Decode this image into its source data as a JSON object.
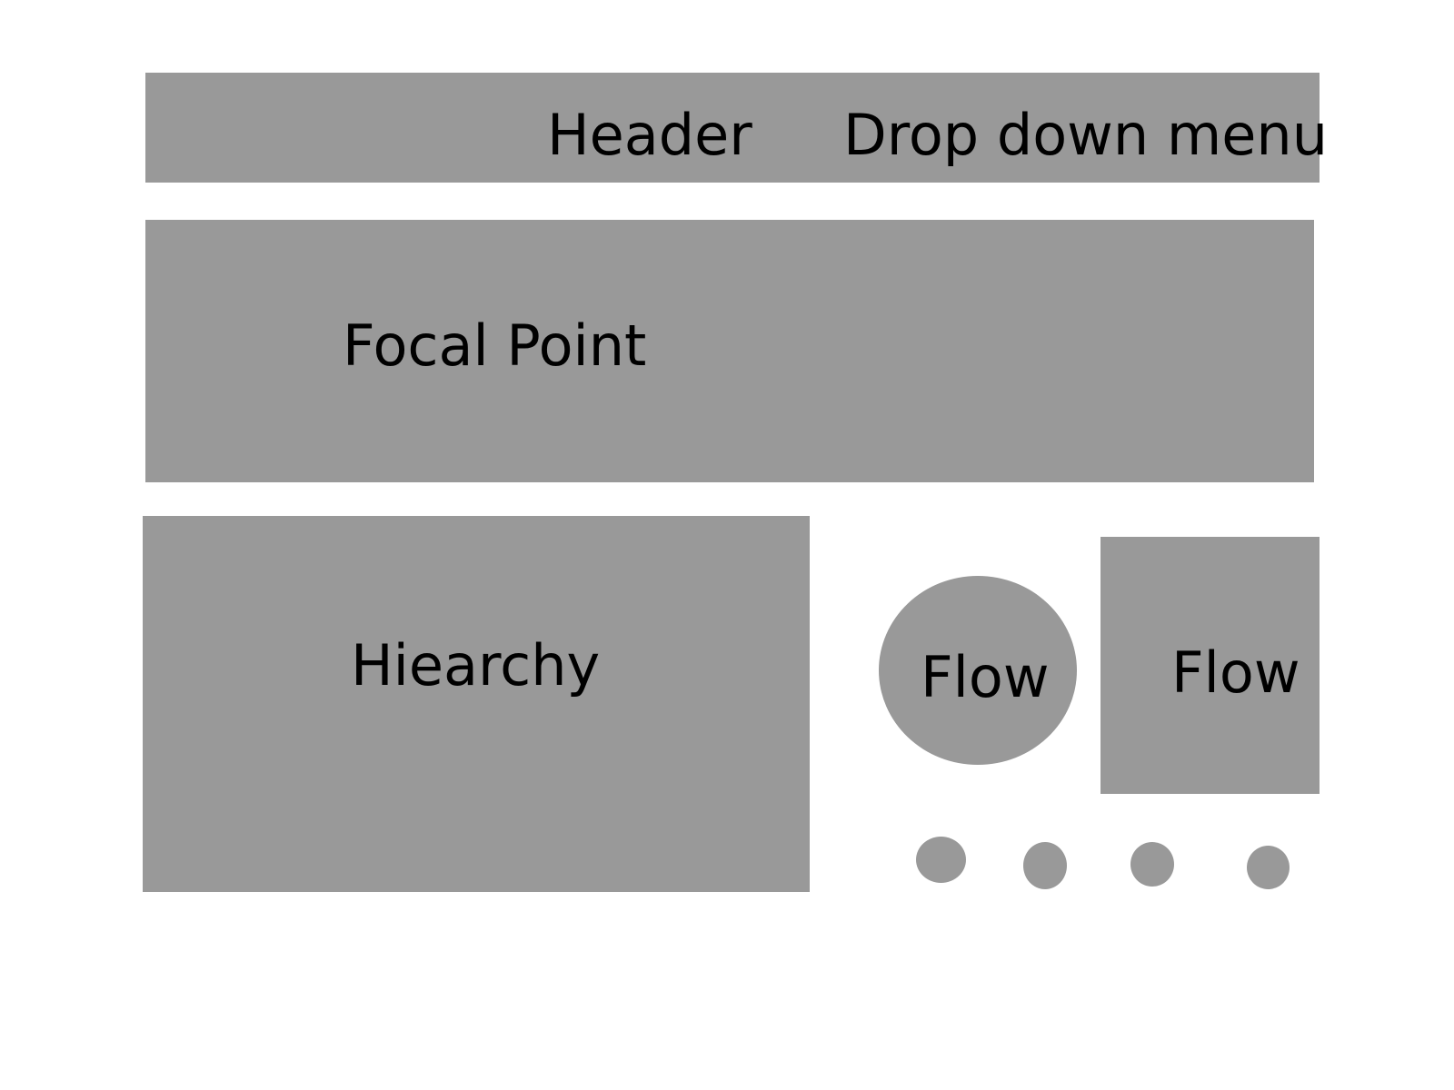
{
  "header": {
    "title": "Header",
    "dropdown_label": "Drop down menu"
  },
  "focal": {
    "label": "Focal Point"
  },
  "hierarchy": {
    "label": "Hiearchy"
  },
  "flow": {
    "circle_label": "Flow",
    "square_label": "Flow",
    "indicator_count": 4
  },
  "colors": {
    "block_fill": "#999999",
    "text": "#000000",
    "background": "#ffffff"
  }
}
